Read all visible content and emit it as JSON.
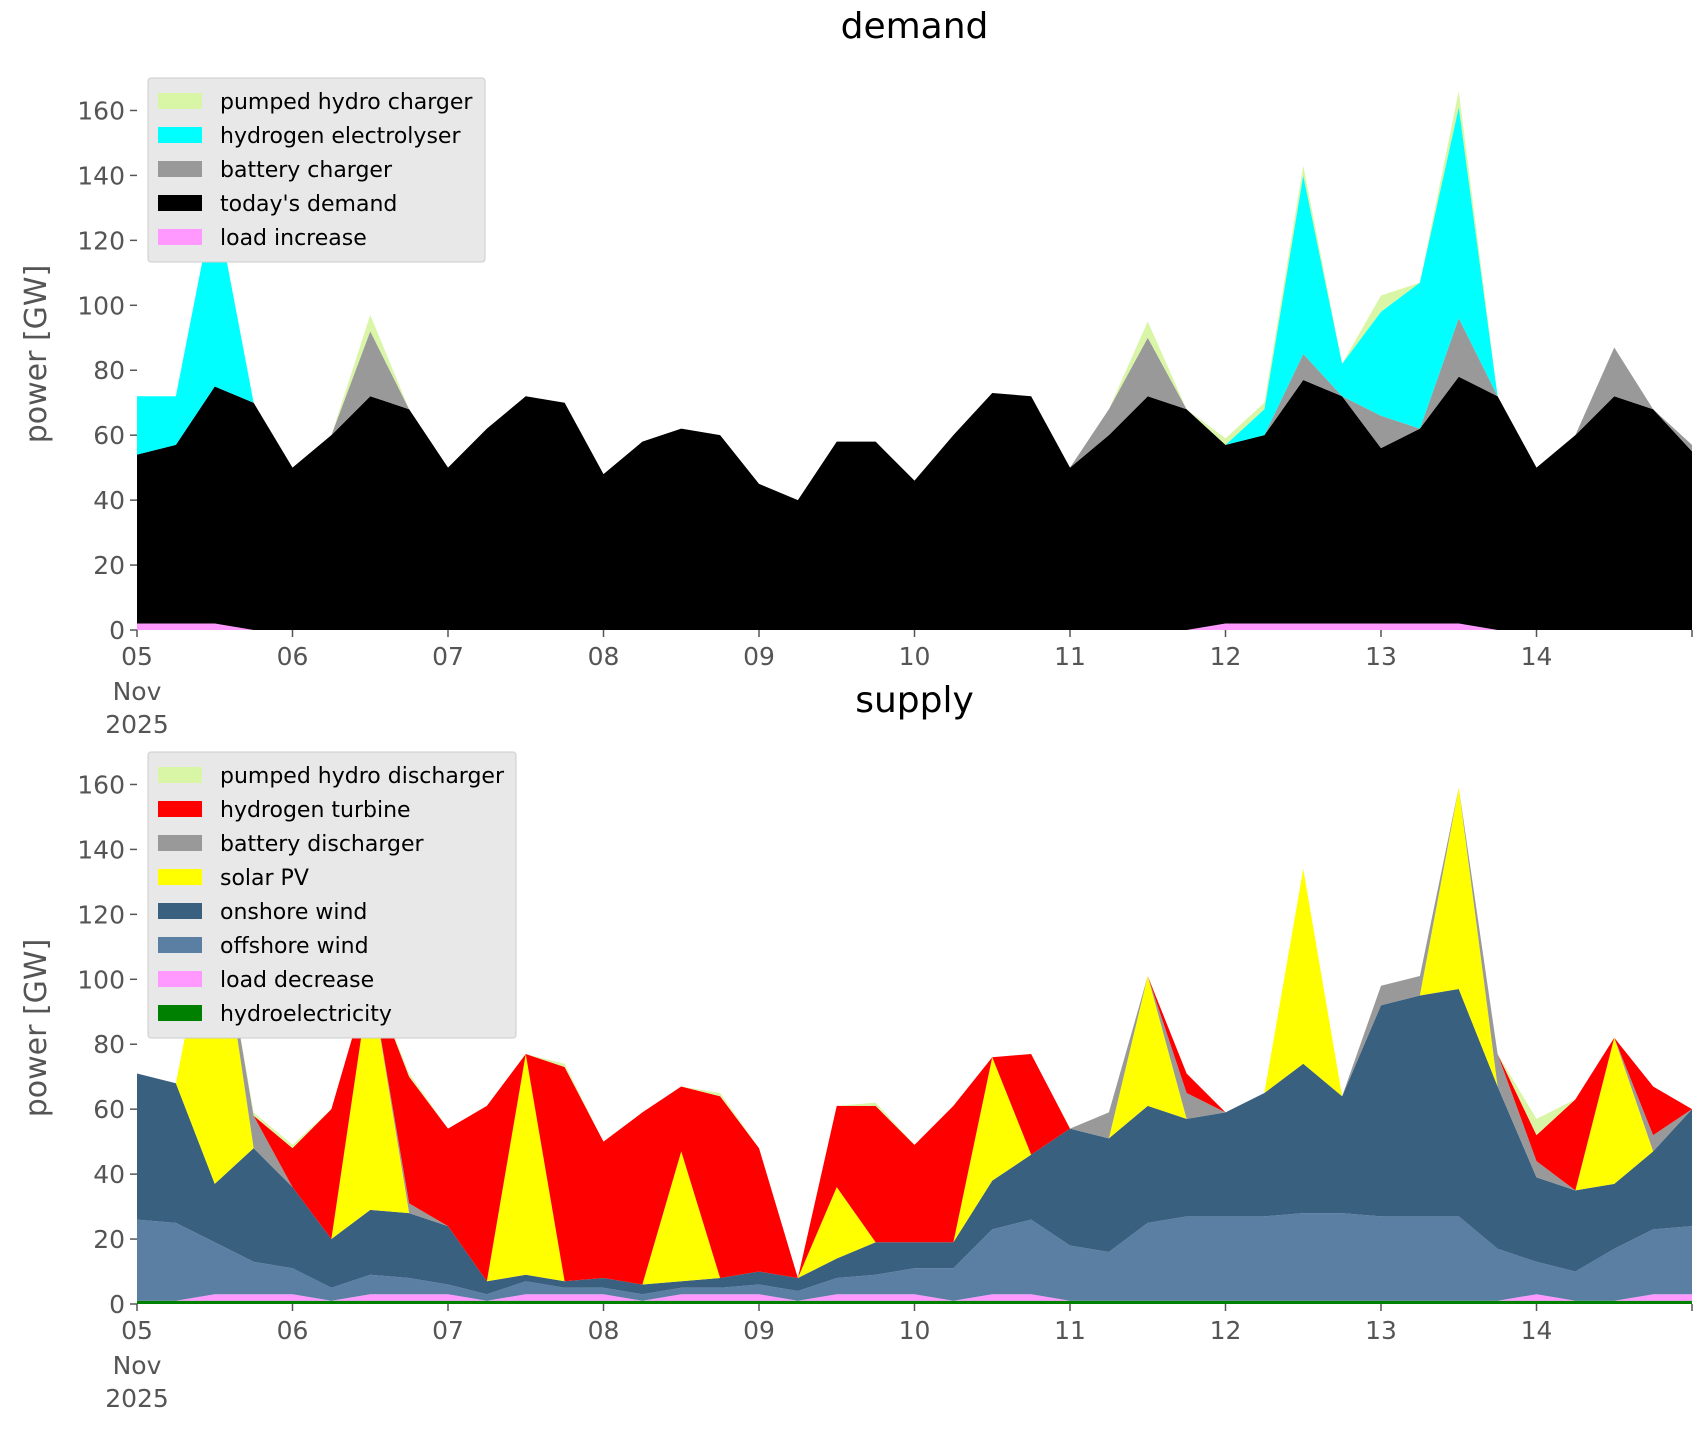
{
  "chart_data": [
    {
      "type": "area",
      "title": "demand",
      "xlabel": "",
      "ylabel": "power [GW]",
      "ylim": [
        0,
        170
      ],
      "xlim": [
        "2025-11-05",
        "2025-11-15"
      ],
      "legend_position": "top-left",
      "x_ticks": [
        "05",
        "06",
        "07",
        "08",
        "09",
        "10",
        "11",
        "12",
        "13",
        "14"
      ],
      "x_tick_sub": [
        "Nov",
        "2025"
      ],
      "y_ticks": [
        "0",
        "20",
        "40",
        "60",
        "80",
        "100",
        "120",
        "140",
        "160"
      ],
      "x": [
        "11-05 00:00",
        "11-05 06:00",
        "11-05 12:00",
        "11-05 18:00",
        "11-06 00:00",
        "11-06 06:00",
        "11-06 12:00",
        "11-06 18:00",
        "11-07 00:00",
        "11-07 06:00",
        "11-07 12:00",
        "11-07 18:00",
        "11-08 00:00",
        "11-08 06:00",
        "11-08 12:00",
        "11-08 18:00",
        "11-09 00:00",
        "11-09 06:00",
        "11-09 12:00",
        "11-09 18:00",
        "11-10 00:00",
        "11-10 06:00",
        "11-10 12:00",
        "11-10 18:00",
        "11-11 00:00",
        "11-11 06:00",
        "11-11 12:00",
        "11-11 18:00",
        "11-12 00:00",
        "11-12 06:00",
        "11-12 12:00",
        "11-12 18:00",
        "11-13 00:00",
        "11-13 06:00",
        "11-13 12:00",
        "11-13 18:00",
        "11-14 00:00",
        "11-14 06:00",
        "11-14 12:00",
        "11-14 18:00",
        "11-15 00:00"
      ],
      "series": [
        {
          "name": "load increase",
          "color": "#ff99ff",
          "values": [
            2,
            2,
            2,
            0,
            0,
            0,
            0,
            0,
            0,
            0,
            0,
            0,
            0,
            0,
            0,
            0,
            0,
            0,
            0,
            0,
            0,
            0,
            0,
            0,
            0,
            0,
            0,
            0,
            2,
            2,
            2,
            2,
            2,
            2,
            2,
            0,
            0,
            0,
            0,
            0,
            0
          ]
        },
        {
          "name": "today's demand",
          "color": "#000000",
          "values": [
            52,
            55,
            73,
            70,
            50,
            60,
            72,
            68,
            50,
            62,
            72,
            70,
            48,
            58,
            62,
            60,
            45,
            40,
            58,
            58,
            46,
            60,
            73,
            72,
            50,
            60,
            72,
            68,
            55,
            58,
            75,
            70,
            54,
            60,
            76,
            72,
            50,
            60,
            72,
            68,
            55
          ]
        },
        {
          "name": "battery charger",
          "color": "#999999",
          "values": [
            0,
            0,
            0,
            0,
            0,
            0,
            20,
            0,
            0,
            0,
            0,
            0,
            0,
            0,
            0,
            0,
            0,
            0,
            0,
            0,
            0,
            0,
            0,
            0,
            0,
            8,
            18,
            0,
            0,
            0,
            8,
            0,
            10,
            0,
            18,
            0,
            0,
            0,
            15,
            0,
            2
          ]
        },
        {
          "name": "hydrogen electrolyser",
          "color": "#00ffff",
          "values": [
            18,
            15,
            58,
            0,
            0,
            0,
            0,
            0,
            0,
            0,
            0,
            0,
            0,
            0,
            0,
            0,
            0,
            0,
            0,
            0,
            0,
            0,
            0,
            0,
            0,
            0,
            0,
            0,
            0,
            8,
            55,
            10,
            32,
            45,
            65,
            0,
            0,
            0,
            0,
            0,
            0
          ]
        },
        {
          "name": "pumped hydro charger",
          "color": "#d9f5a6",
          "values": [
            0,
            0,
            0,
            0,
            0,
            0,
            5,
            0,
            0,
            0,
            0,
            0,
            0,
            0,
            0,
            0,
            0,
            0,
            0,
            0,
            0,
            0,
            0,
            0,
            0,
            0,
            5,
            0,
            2,
            2,
            3,
            0,
            5,
            0,
            5,
            0,
            0,
            0,
            0,
            0,
            0
          ]
        }
      ]
    },
    {
      "type": "area",
      "title": "supply",
      "xlabel": "",
      "ylabel": "power [GW]",
      "ylim": [
        0,
        170
      ],
      "xlim": [
        "2025-11-05",
        "2025-11-15"
      ],
      "legend_position": "top-left",
      "x_ticks": [
        "05",
        "06",
        "07",
        "08",
        "09",
        "10",
        "11",
        "12",
        "13",
        "14"
      ],
      "x_tick_sub": [
        "Nov",
        "2025"
      ],
      "y_ticks": [
        "0",
        "20",
        "40",
        "60",
        "80",
        "100",
        "120",
        "140",
        "160"
      ],
      "x": [
        "11-05 00:00",
        "11-05 06:00",
        "11-05 12:00",
        "11-05 18:00",
        "11-06 00:00",
        "11-06 06:00",
        "11-06 12:00",
        "11-06 18:00",
        "11-07 00:00",
        "11-07 06:00",
        "11-07 12:00",
        "11-07 18:00",
        "11-08 00:00",
        "11-08 06:00",
        "11-08 12:00",
        "11-08 18:00",
        "11-09 00:00",
        "11-09 06:00",
        "11-09 12:00",
        "11-09 18:00",
        "11-10 00:00",
        "11-10 06:00",
        "11-10 12:00",
        "11-10 18:00",
        "11-11 00:00",
        "11-11 06:00",
        "11-11 12:00",
        "11-11 18:00",
        "11-12 00:00",
        "11-12 06:00",
        "11-12 12:00",
        "11-12 18:00",
        "11-13 00:00",
        "11-13 06:00",
        "11-13 12:00",
        "11-13 18:00",
        "11-14 00:00",
        "11-14 06:00",
        "11-14 12:00",
        "11-14 18:00",
        "11-15 00:00"
      ],
      "series": [
        {
          "name": "hydroelectricity",
          "color": "#008000",
          "values": [
            1,
            1,
            1,
            1,
            1,
            1,
            1,
            1,
            1,
            1,
            1,
            1,
            1,
            1,
            1,
            1,
            1,
            1,
            1,
            1,
            1,
            1,
            1,
            1,
            1,
            1,
            1,
            1,
            1,
            1,
            1,
            1,
            1,
            1,
            1,
            1,
            1,
            1,
            1,
            1,
            1
          ]
        },
        {
          "name": "load decrease",
          "color": "#ff99ff",
          "values": [
            0,
            0,
            2,
            2,
            2,
            0,
            2,
            2,
            2,
            0,
            2,
            2,
            2,
            0,
            2,
            2,
            2,
            0,
            2,
            2,
            2,
            0,
            2,
            2,
            0,
            0,
            0,
            0,
            0,
            0,
            0,
            0,
            0,
            0,
            0,
            0,
            2,
            0,
            0,
            2,
            2
          ]
        },
        {
          "name": "offshore wind",
          "color": "#5b7fa3",
          "values": [
            25,
            24,
            16,
            10,
            8,
            4,
            6,
            5,
            3,
            2,
            4,
            2,
            2,
            2,
            2,
            2,
            3,
            3,
            5,
            6,
            8,
            10,
            20,
            23,
            17,
            15,
            24,
            26,
            26,
            26,
            27,
            27,
            26,
            26,
            26,
            16,
            10,
            9,
            16,
            20,
            21
          ]
        },
        {
          "name": "onshore wind",
          "color": "#3a6080",
          "values": [
            45,
            43,
            18,
            35,
            25,
            15,
            20,
            20,
            18,
            4,
            2,
            2,
            3,
            3,
            2,
            3,
            4,
            4,
            6,
            10,
            8,
            8,
            15,
            20,
            36,
            35,
            36,
            30,
            32,
            38,
            46,
            36,
            65,
            68,
            70,
            50,
            26,
            25,
            20,
            24,
            36
          ]
        },
        {
          "name": "solar PV",
          "color": "#ffff00",
          "values": [
            0,
            0,
            92,
            0,
            0,
            0,
            72,
            0,
            0,
            0,
            68,
            0,
            0,
            0,
            40,
            0,
            0,
            0,
            22,
            0,
            0,
            0,
            38,
            0,
            0,
            0,
            40,
            0,
            0,
            0,
            60,
            0,
            0,
            0,
            62,
            0,
            0,
            0,
            45,
            0,
            0
          ]
        },
        {
          "name": "battery discharger",
          "color": "#999999",
          "values": [
            0,
            0,
            0,
            10,
            0,
            0,
            0,
            3,
            0,
            0,
            0,
            0,
            0,
            0,
            0,
            0,
            0,
            0,
            0,
            0,
            0,
            0,
            0,
            0,
            0,
            8,
            0,
            8,
            0,
            0,
            0,
            0,
            6,
            6,
            0,
            10,
            5,
            0,
            0,
            5,
            0
          ]
        },
        {
          "name": "hydrogen turbine",
          "color": "#ff0000",
          "values": [
            0,
            0,
            0,
            0,
            12,
            40,
            0,
            39,
            30,
            54,
            0,
            66,
            42,
            53,
            20,
            56,
            38,
            0,
            25,
            42,
            30,
            42,
            0,
            31,
            0,
            0,
            0,
            6,
            0,
            0,
            0,
            0,
            0,
            0,
            0,
            0,
            8,
            28,
            0,
            15,
            0
          ]
        },
        {
          "name": "pumped hydro discharger",
          "color": "#d9f5a6",
          "values": [
            0,
            0,
            0,
            1,
            1,
            0,
            0,
            1,
            0,
            0,
            0,
            1,
            0,
            0,
            0,
            1,
            0,
            0,
            0,
            1,
            0,
            0,
            0,
            0,
            0,
            0,
            0,
            0,
            0,
            0,
            0,
            0,
            0,
            0,
            0,
            0,
            5,
            0,
            0,
            0,
            0
          ]
        }
      ]
    }
  ]
}
